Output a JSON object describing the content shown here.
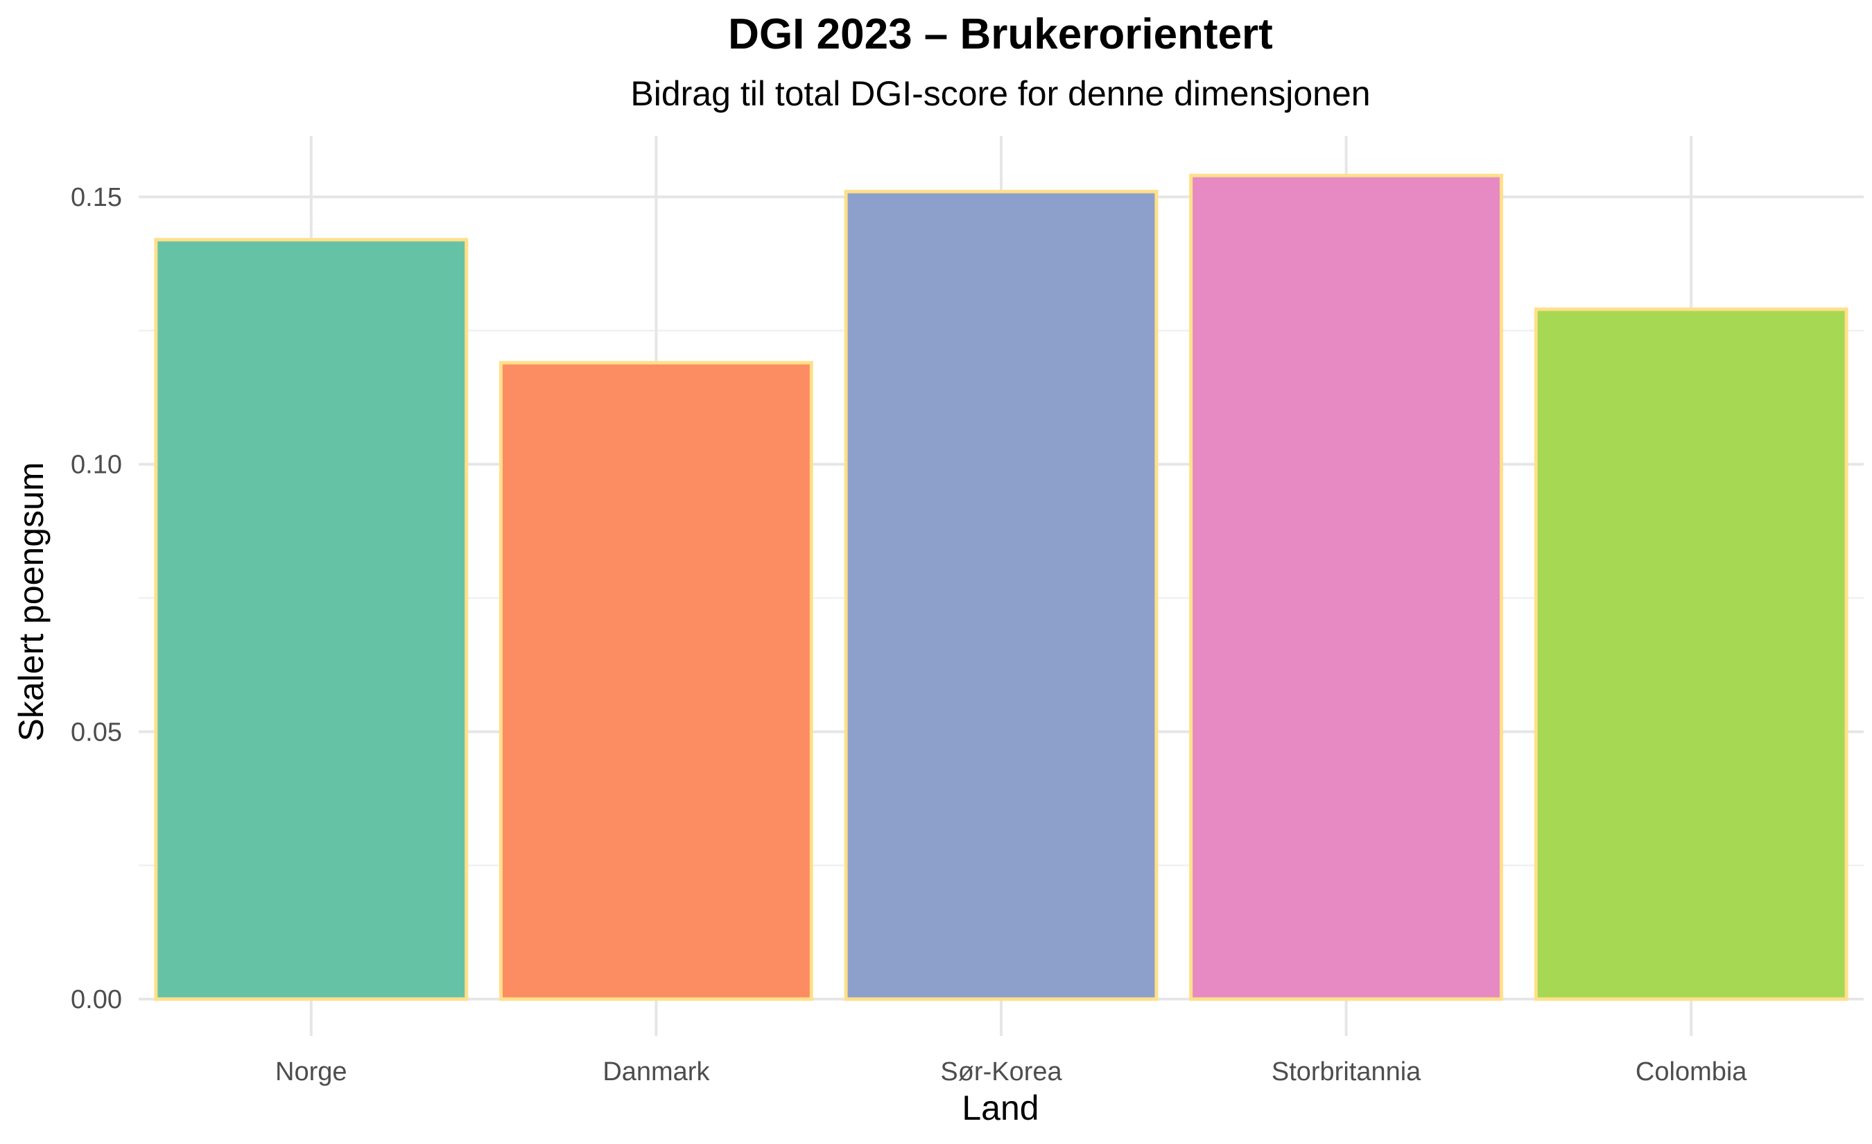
{
  "chart_data": {
    "type": "bar",
    "title": "DGI 2023 – Brukerorientert",
    "subtitle": "Bidrag til total DGI-score for denne dimensjonen",
    "xlabel": "Land",
    "ylabel": "Skalert poengsum",
    "categories": [
      "Norge",
      "Danmark",
      "Sør-Korea",
      "Storbritannia",
      "Colombia"
    ],
    "values": [
      0.142,
      0.119,
      0.151,
      0.154,
      0.129
    ],
    "ylim": [
      0,
      0.16
    ],
    "yticks": [
      0,
      0.05,
      0.1,
      0.15
    ],
    "ytick_labels": [
      "0.00",
      "0.05",
      "0.10",
      "0.15"
    ],
    "grid": true,
    "legend": "none",
    "bar_colors": [
      "#66c2a5",
      "#fc8d62",
      "#8da0cb",
      "#e78ac3",
      "#a6d854"
    ],
    "bar_outline_color": "#ffe08a"
  }
}
